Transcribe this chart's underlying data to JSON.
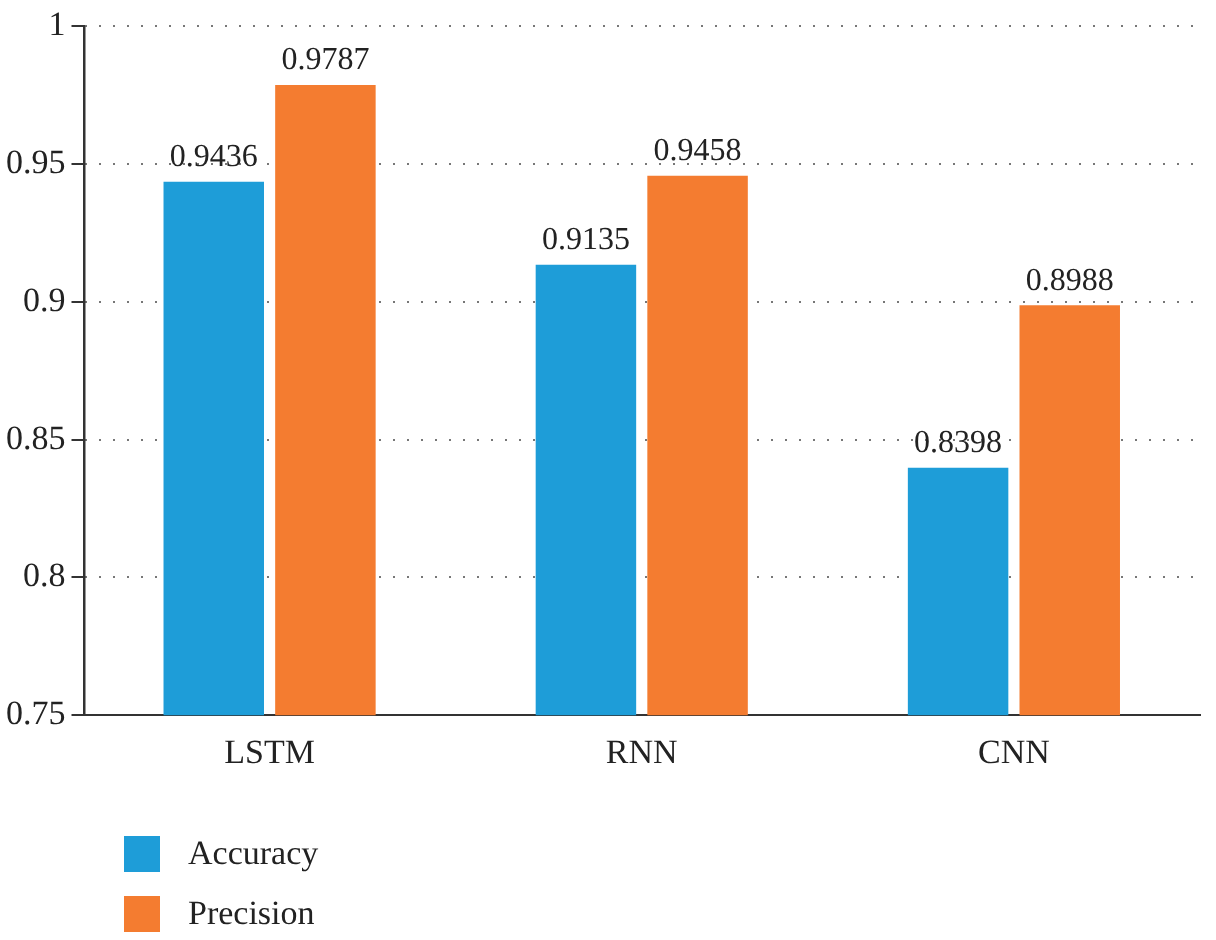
{
  "chart_data": {
    "type": "bar",
    "categories": [
      "LSTM",
      "RNN",
      "CNN"
    ],
    "series": [
      {
        "name": "Accuracy",
        "color": "#1e9dd8",
        "values": [
          0.9436,
          0.9135,
          0.8398
        ]
      },
      {
        "name": "Precision",
        "color": "#f47c30",
        "values": [
          0.9787,
          0.9458,
          0.8988
        ]
      }
    ],
    "ylim": [
      0.75,
      1
    ],
    "yticks": [
      0.75,
      0.8,
      0.85,
      0.9,
      0.95,
      1
    ],
    "grid": "y",
    "legend": "bottom left",
    "data_labels": true
  }
}
